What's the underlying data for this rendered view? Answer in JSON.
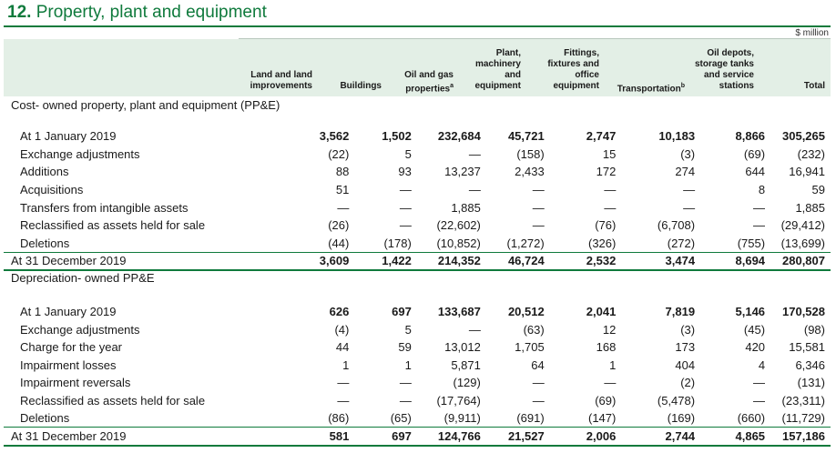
{
  "title": {
    "number": "12.",
    "text": "Property, plant and equipment"
  },
  "units": "$ million",
  "columns": [
    {
      "label": "Land and land\nimprovements",
      "sup": ""
    },
    {
      "label": "Buildings",
      "sup": ""
    },
    {
      "label": "Oil and gas\nproperties",
      "sup": "a"
    },
    {
      "label": "Plant,\nmachinery\nand\nequipment",
      "sup": ""
    },
    {
      "label": "Fittings,\nfixtures and\noffice\nequipment",
      "sup": ""
    },
    {
      "label": "Transportation",
      "sup": "b"
    },
    {
      "label": "Oil depots,\nstorage tanks\nand service\nstations",
      "sup": ""
    },
    {
      "label": "Total",
      "sup": ""
    }
  ],
  "sections": [
    {
      "heading": "Cost- owned property, plant and equipment (PP&E)",
      "rows": [
        {
          "label": "At 1 January 2019",
          "values": [
            "3,562",
            "1,502",
            "232,684",
            "45,721",
            "2,747",
            "10,183",
            "8,866",
            "305,265"
          ]
        },
        {
          "label": "Exchange adjustments",
          "values": [
            "(22)",
            "5",
            "—",
            "(158)",
            "15",
            "(3)",
            "(69)",
            "(232)"
          ]
        },
        {
          "label": "Additions",
          "values": [
            "88",
            "93",
            "13,237",
            "2,433",
            "172",
            "274",
            "644",
            "16,941"
          ]
        },
        {
          "label": "Acquisitions",
          "values": [
            "51",
            "—",
            "—",
            "—",
            "—",
            "—",
            "8",
            "59"
          ]
        },
        {
          "label": "Transfers from intangible assets",
          "values": [
            "—",
            "—",
            "1,885",
            "—",
            "—",
            "—",
            "—",
            "1,885"
          ]
        },
        {
          "label": "Reclassified as assets held for sale",
          "values": [
            "(26)",
            "—",
            "(22,602)",
            "—",
            "(76)",
            "(6,708)",
            "—",
            "(29,412)"
          ]
        },
        {
          "label": "Deletions",
          "values": [
            "(44)",
            "(178)",
            "(10,852)",
            "(1,272)",
            "(326)",
            "(272)",
            "(755)",
            "(13,699)"
          ]
        }
      ],
      "total": {
        "label": "At 31 December 2019",
        "values": [
          "3,609",
          "1,422",
          "214,352",
          "46,724",
          "2,532",
          "3,474",
          "8,694",
          "280,807"
        ]
      }
    },
    {
      "heading": "Depreciation- owned PP&E",
      "rows": [
        {
          "label": "At 1 January 2019",
          "values": [
            "626",
            "697",
            "133,687",
            "20,512",
            "2,041",
            "7,819",
            "5,146",
            "170,528"
          ]
        },
        {
          "label": "Exchange adjustments",
          "values": [
            "(4)",
            "5",
            "—",
            "(63)",
            "12",
            "(3)",
            "(45)",
            "(98)"
          ]
        },
        {
          "label": "Charge for the year",
          "values": [
            "44",
            "59",
            "13,012",
            "1,705",
            "168",
            "173",
            "420",
            "15,581"
          ]
        },
        {
          "label": "Impairment losses",
          "values": [
            "1",
            "1",
            "5,871",
            "64",
            "1",
            "404",
            "4",
            "6,346"
          ]
        },
        {
          "label": "Impairment reversals",
          "values": [
            "—",
            "—",
            "(129)",
            "—",
            "—",
            "(2)",
            "—",
            "(131)"
          ]
        },
        {
          "label": "Reclassified as assets held for sale",
          "values": [
            "—",
            "—",
            "(17,764)",
            "—",
            "(69)",
            "(5,478)",
            "—",
            "(23,311)"
          ]
        },
        {
          "label": "Deletions",
          "values": [
            "(86)",
            "(65)",
            "(9,911)",
            "(691)",
            "(147)",
            "(169)",
            "(660)",
            "(11,729)"
          ]
        }
      ],
      "total": {
        "label": "At 31 December 2019",
        "values": [
          "581",
          "697",
          "124,766",
          "21,527",
          "2,006",
          "2,744",
          "4,865",
          "157,186"
        ]
      }
    }
  ],
  "colors": {
    "accent": "#0f7a3c",
    "header_bg": "#e3efe6"
  }
}
